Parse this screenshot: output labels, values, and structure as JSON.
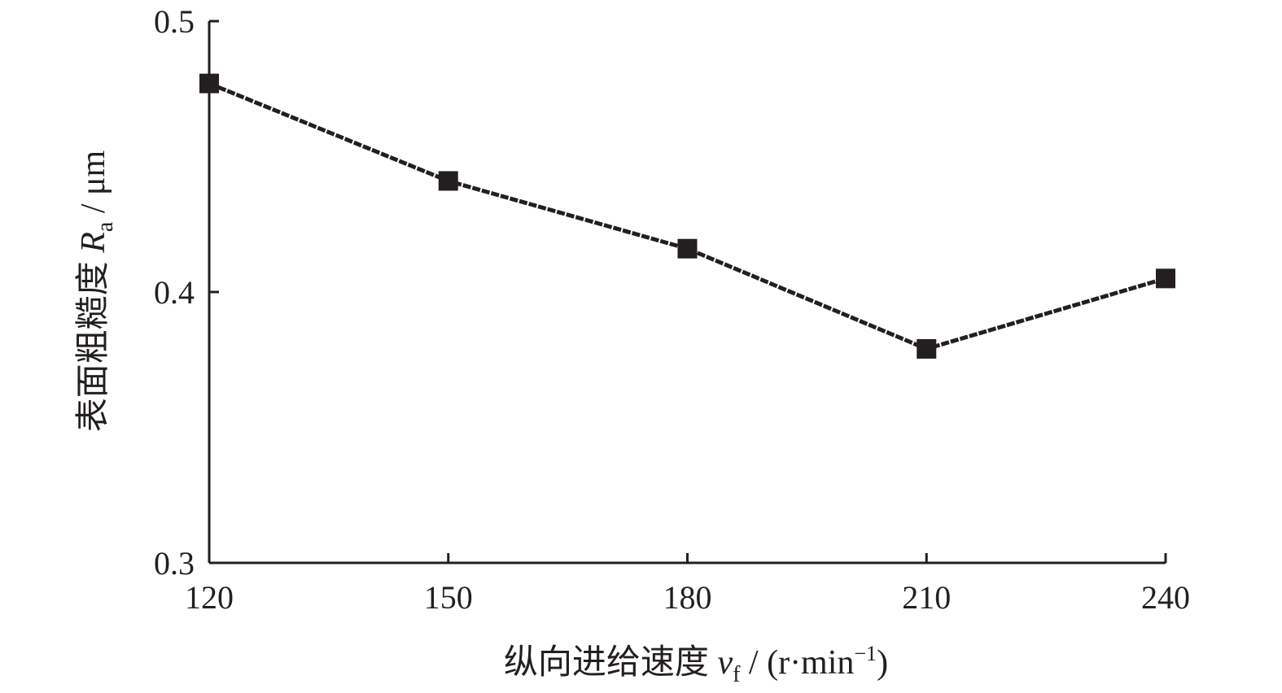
{
  "chart_data": {
    "type": "line",
    "x": [
      120,
      150,
      180,
      210,
      240
    ],
    "series": [
      {
        "values": [
          0.477,
          0.441,
          0.416,
          0.379,
          0.405
        ]
      }
    ],
    "xlim": [
      120,
      240
    ],
    "ylim": [
      0.3,
      0.5
    ],
    "xticks": [
      "120",
      "150",
      "180",
      "210",
      "240"
    ],
    "yticks": [
      "0.3",
      "0.4",
      "0.5"
    ],
    "xlabel": {
      "prefix": "纵向进给速度 ",
      "var": "v",
      "sub": "f",
      "mid": " / (r·min",
      "sup": "−1",
      "suffix": ")"
    },
    "ylabel": {
      "prefix": "表面粗糙度 ",
      "var": "R",
      "sub": "a",
      "suffix": " / μm"
    },
    "marker": "square",
    "color": "#231f20",
    "grid": false
  }
}
